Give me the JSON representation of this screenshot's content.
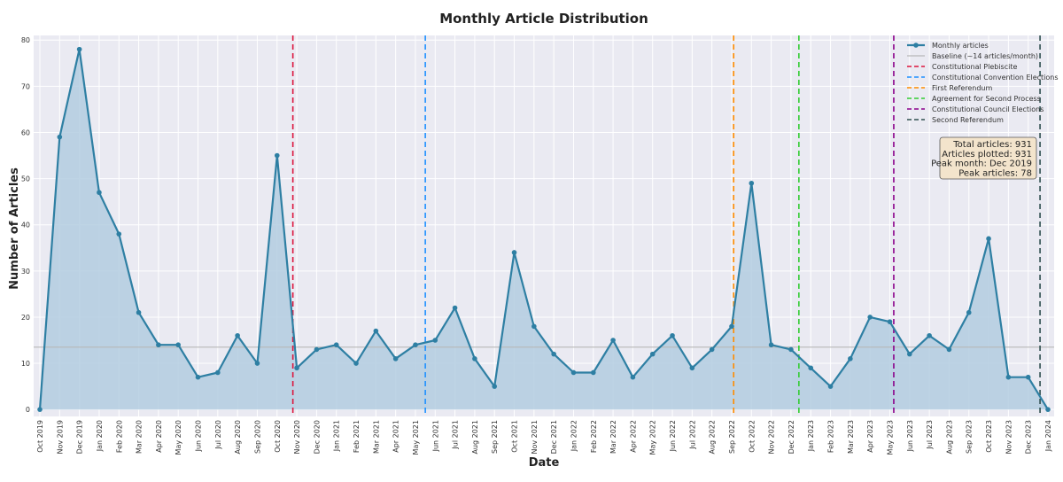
{
  "colors": {
    "line": "#2e7fa3",
    "area": "#b3cde0",
    "plot_bg": "#eaeaf2",
    "grid": "#ffffff",
    "baseline": "#b8b8b8",
    "stats_bg": "#f3e4cc",
    "stats_border": "#555555"
  },
  "chart_data": {
    "type": "area",
    "title": "Monthly Article Distribution",
    "xlabel": "Date",
    "ylabel": "Number of Articles",
    "ylim": [
      -1.5,
      81
    ],
    "yticks": [
      0,
      10,
      20,
      30,
      40,
      50,
      60,
      70,
      80
    ],
    "grid": true,
    "legend_position": "top-right",
    "x": [
      "Oct 2019",
      "Nov 2019",
      "Dec 2019",
      "Jan 2020",
      "Feb 2020",
      "Mar 2020",
      "Apr 2020",
      "May 2020",
      "Jun 2020",
      "Jul 2020",
      "Aug 2020",
      "Sep 2020",
      "Oct 2020",
      "Nov 2020",
      "Dec 2020",
      "Jan 2021",
      "Feb 2021",
      "Mar 2021",
      "Apr 2021",
      "May 2021",
      "Jun 2021",
      "Jul 2021",
      "Aug 2021",
      "Sep 2021",
      "Oct 2021",
      "Nov 2021",
      "Dec 2021",
      "Jan 2022",
      "Feb 2022",
      "Mar 2022",
      "Apr 2022",
      "May 2022",
      "Jun 2022",
      "Jul 2022",
      "Aug 2022",
      "Sep 2022",
      "Oct 2022",
      "Nov 2022",
      "Dec 2022",
      "Jan 2023",
      "Feb 2023",
      "Mar 2023",
      "Apr 2023",
      "May 2023",
      "Jun 2023",
      "Jul 2023",
      "Aug 2023",
      "Sep 2023",
      "Oct 2023",
      "Nov 2023",
      "Dec 2023",
      "Jan 2024"
    ],
    "series": [
      {
        "name": "Monthly articles",
        "values": [
          0,
          59,
          78,
          47,
          38,
          21,
          14,
          14,
          7,
          8,
          16,
          10,
          55,
          9,
          13,
          14,
          10,
          17,
          11,
          14,
          15,
          22,
          11,
          5,
          34,
          18,
          12,
          8,
          8,
          15,
          7,
          12,
          16,
          9,
          13,
          18,
          49,
          14,
          13,
          9,
          5,
          11,
          20,
          19,
          12,
          16,
          13,
          21,
          37,
          7,
          7,
          0
        ]
      }
    ],
    "baseline": {
      "label": "Baseline (~14 articles/month)",
      "value": 13.5
    },
    "events": [
      {
        "label": "Constitutional Plebiscite",
        "x": 12.8,
        "color": "#dc143c"
      },
      {
        "label": "Constitutional Convention Elections",
        "x": 19.5,
        "color": "#1e90ff"
      },
      {
        "label": "First Referendum",
        "x": 35.1,
        "color": "#ff8c00"
      },
      {
        "label": "Agreement for Second Process",
        "x": 38.4,
        "color": "#32cd32"
      },
      {
        "label": "Constitutional Council Elections",
        "x": 43.2,
        "color": "#8b008b"
      },
      {
        "label": "Second Referendum",
        "x": 50.6,
        "color": "#2f4f4f"
      }
    ],
    "stats_box": [
      "Total articles: 931",
      "Articles plotted: 931",
      "Peak month: Dec 2019",
      "Peak articles: 78"
    ]
  }
}
